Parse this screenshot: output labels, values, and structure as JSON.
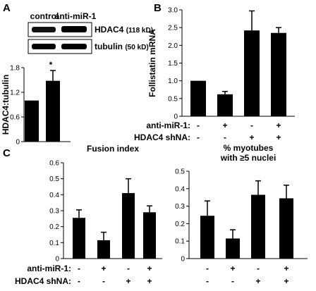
{
  "panels": {
    "a": "A",
    "b": "B",
    "c": "C"
  },
  "blot": {
    "lanes": [
      "control",
      "anti-miR-1"
    ],
    "rows": [
      {
        "name": "HDAC4",
        "size": "(118 kD)"
      },
      {
        "name": "tubulin",
        "size": "(50 kD)"
      }
    ]
  },
  "chart_data": [
    {
      "id": "A",
      "type": "bar",
      "ylabel": "HDAC4:tubulin",
      "ylim": [
        0,
        1.8
      ],
      "yticks": [
        "0",
        "0.6",
        "1.2",
        "1.8"
      ],
      "categories": [
        "control",
        "anti-miR-1"
      ],
      "values": [
        1.0,
        1.48
      ],
      "errors": [
        0,
        0.25
      ],
      "annotation": {
        "text": "*",
        "index": 1
      },
      "color": "#000000"
    },
    {
      "id": "B",
      "type": "bar",
      "ylabel": "Follistatin mRNA",
      "ylim": [
        0,
        3.0
      ],
      "yticks": [
        "0",
        "0.5",
        "1.0",
        "1.5",
        "2.0",
        "2.5",
        "3.0"
      ],
      "values": [
        1.0,
        0.62,
        2.42,
        2.35
      ],
      "errors": [
        0,
        0.08,
        0.55,
        0.15
      ],
      "conditions": [
        {
          "label": "anti-miR-1:",
          "signs": [
            "-",
            "+",
            "-",
            "+"
          ]
        },
        {
          "label": "HDAC4 shNA:",
          "signs": [
            "-",
            "-",
            "+",
            "+"
          ]
        }
      ],
      "color": "#000000"
    },
    {
      "id": "C1",
      "type": "bar",
      "title": "Fusion index",
      "ylim": [
        0,
        0.6
      ],
      "yticks": [
        "0",
        "0.1",
        "0.2",
        "0.3",
        "0.4",
        "0.5",
        "0.6"
      ],
      "values": [
        0.255,
        0.115,
        0.41,
        0.29
      ],
      "errors": [
        0.05,
        0.05,
        0.09,
        0.04
      ],
      "conditions": [
        {
          "label": "anti-miR-1:",
          "signs": [
            "-",
            "+",
            "-",
            "+"
          ]
        },
        {
          "label": "HDAC4 shNA:",
          "signs": [
            "-",
            "-",
            "+",
            "+"
          ]
        }
      ],
      "color": "#000000"
    },
    {
      "id": "C2",
      "type": "bar",
      "title": [
        "% myotubes",
        "with ≥5 nuclei"
      ],
      "ylim": [
        0,
        0.5
      ],
      "yticks": [
        "0",
        "0.1",
        "0.2",
        "0.3",
        "0.4",
        "0.5"
      ],
      "values": [
        0.245,
        0.115,
        0.365,
        0.345
      ],
      "errors": [
        0.085,
        0.05,
        0.08,
        0.075
      ],
      "conditions": [
        {
          "signs": [
            "-",
            "+",
            "-",
            "+"
          ]
        },
        {
          "signs": [
            "-",
            "-",
            "+",
            "+"
          ]
        }
      ],
      "color": "#000000"
    }
  ]
}
